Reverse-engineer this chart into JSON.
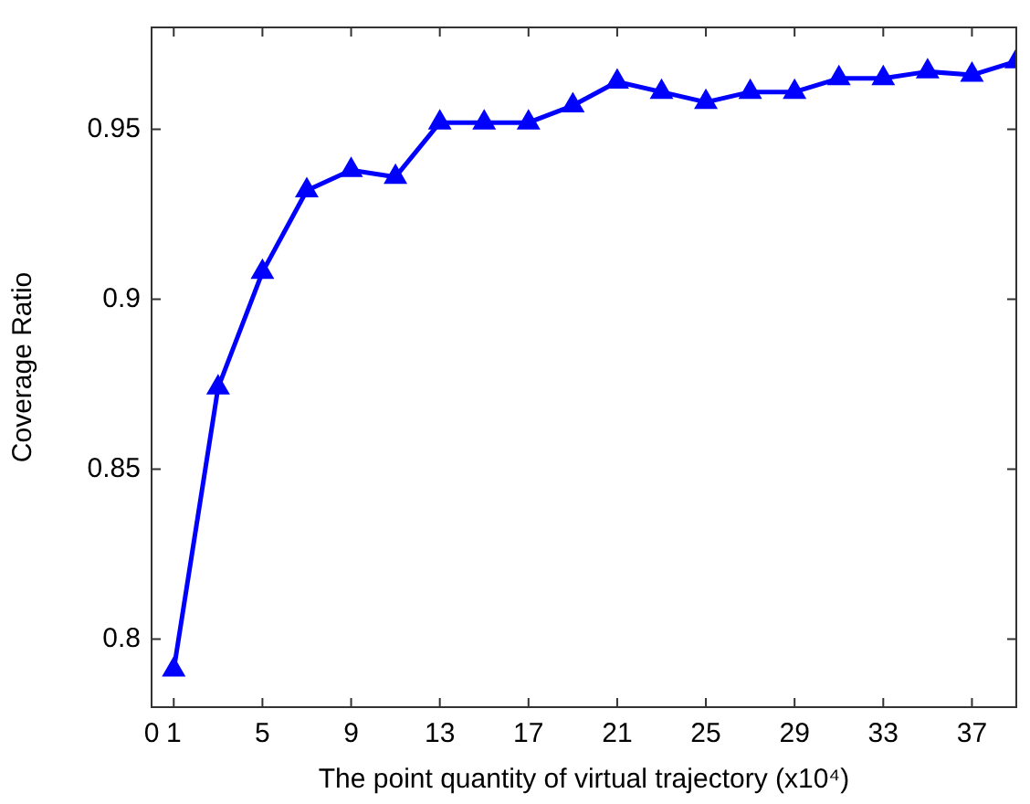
{
  "chart_data": {
    "type": "line",
    "xlabel": "The point quantity of virtual trajectory (x10⁴)",
    "ylabel": "Coverage Ratio",
    "x": [
      1,
      3,
      5,
      7,
      9,
      11,
      13,
      15,
      17,
      19,
      21,
      23,
      25,
      27,
      29,
      31,
      33,
      35,
      37,
      39
    ],
    "series": [
      {
        "color": "#0000ff",
        "values": [
          0.791,
          0.874,
          0.908,
          0.932,
          0.938,
          0.936,
          0.952,
          0.952,
          0.952,
          0.957,
          0.964,
          0.961,
          0.958,
          0.961,
          0.961,
          0.965,
          0.965,
          0.967,
          0.966,
          0.97
        ]
      }
    ],
    "xlim": [
      0,
      39
    ],
    "xticks": [
      0,
      1,
      5,
      9,
      13,
      17,
      21,
      25,
      29,
      33,
      37
    ],
    "ylim": [
      0.78,
      0.98
    ],
    "yticks": [
      0.8,
      0.85,
      0.9,
      0.95
    ],
    "marker": "triangle",
    "line_style": "solid",
    "grid": false,
    "legend": false
  }
}
